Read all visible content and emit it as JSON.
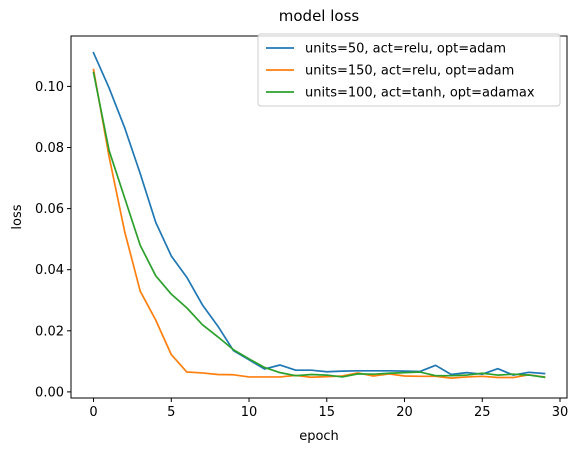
{
  "chart_data": {
    "type": "line",
    "title": "model loss",
    "xlabel": "epoch",
    "ylabel": "loss",
    "xlim": [
      -1.45,
      30.45
    ],
    "ylim": [
      -0.002,
      0.1165
    ],
    "xticks": [
      0,
      5,
      10,
      15,
      20,
      25,
      30
    ],
    "yticks": [
      0.0,
      0.02,
      0.04,
      0.06,
      0.08,
      0.1
    ],
    "xtick_labels": [
      "0",
      "5",
      "10",
      "15",
      "20",
      "25",
      "30"
    ],
    "ytick_labels": [
      "0.00",
      "0.02",
      "0.04",
      "0.06",
      "0.08",
      "0.10"
    ],
    "grid": false,
    "legend_position": "top-right",
    "x": [
      0,
      1,
      2,
      3,
      4,
      5,
      6,
      7,
      8,
      9,
      10,
      11,
      12,
      13,
      14,
      15,
      16,
      17,
      18,
      19,
      20,
      21,
      22,
      23,
      24,
      25,
      26,
      27,
      28,
      29
    ],
    "series": [
      {
        "name": "units=50, act=relu, opt=adam",
        "color": "#1f77b4",
        "values": [
          0.111,
          0.0995,
          0.0865,
          0.0715,
          0.0555,
          0.0445,
          0.0375,
          0.0285,
          0.0215,
          0.0135,
          0.0105,
          0.0075,
          0.0088,
          0.0071,
          0.0071,
          0.0066,
          0.0068,
          0.0069,
          0.0069,
          0.0069,
          0.0068,
          0.0067,
          0.0087,
          0.0057,
          0.0063,
          0.0058,
          0.0076,
          0.0055,
          0.0064,
          0.006
        ]
      },
      {
        "name": "units=150, act=relu, opt=adam",
        "color": "#ff7f0e",
        "values": [
          0.1055,
          0.077,
          0.0525,
          0.033,
          0.0235,
          0.0122,
          0.0065,
          0.0062,
          0.0057,
          0.0056,
          0.0049,
          0.0049,
          0.0049,
          0.0054,
          0.0048,
          0.005,
          0.0052,
          0.0062,
          0.0052,
          0.0059,
          0.0052,
          0.0051,
          0.0051,
          0.0045,
          0.0049,
          0.0051,
          0.0047,
          0.0047,
          0.0056,
          0.0049
        ]
      },
      {
        "name": "units=100, act=tanh, opt=adamax",
        "color": "#2ca02c",
        "values": [
          0.1045,
          0.079,
          0.0635,
          0.048,
          0.038,
          0.032,
          0.0275,
          0.022,
          0.018,
          0.0138,
          0.0108,
          0.008,
          0.0063,
          0.0053,
          0.0057,
          0.0055,
          0.0049,
          0.0059,
          0.0058,
          0.0061,
          0.0063,
          0.0065,
          0.0053,
          0.0053,
          0.0055,
          0.0061,
          0.0055,
          0.0058,
          0.0055,
          0.0048
        ]
      }
    ]
  }
}
